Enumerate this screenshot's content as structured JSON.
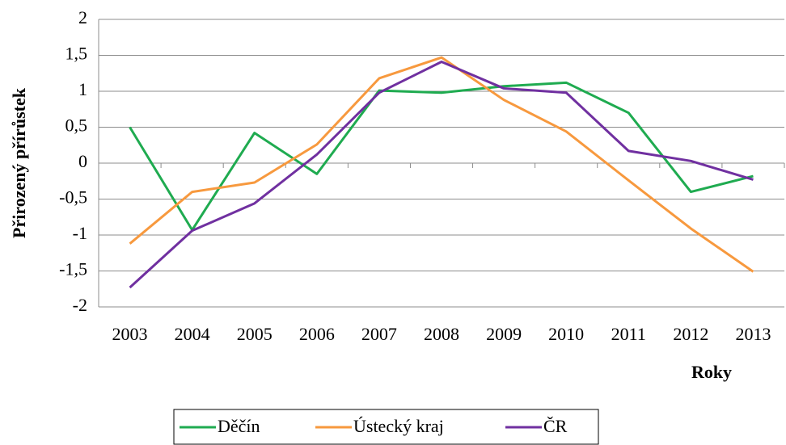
{
  "chart_data": {
    "type": "line",
    "x_label": "Roky",
    "y_label": "Přirozený přírůstek",
    "categories": [
      "2003",
      "2004",
      "2005",
      "2006",
      "2007",
      "2008",
      "2009",
      "2010",
      "2011",
      "2012",
      "2013"
    ],
    "series": [
      {
        "name": "Děčín",
        "color": "#1fab50",
        "values": [
          0.5,
          -0.93,
          0.42,
          -0.15,
          1.01,
          0.98,
          1.07,
          1.12,
          0.7,
          -0.4,
          -0.18
        ]
      },
      {
        "name": "Ústecký kraj",
        "color": "#f7993e",
        "values": [
          -1.12,
          -0.4,
          -0.27,
          0.26,
          1.18,
          1.47,
          0.88,
          0.44,
          -0.24,
          -0.91,
          -1.51
        ]
      },
      {
        "name": "ČR",
        "color": "#7030a0",
        "values": [
          -1.73,
          -0.94,
          -0.56,
          0.12,
          0.98,
          1.41,
          1.04,
          0.98,
          0.17,
          0.03,
          -0.23
        ]
      }
    ],
    "ylim": [
      -2,
      2
    ],
    "yticks": [
      -2,
      {
        "value": -1.5,
        "label": "-1,5"
      },
      -1,
      {
        "value": -0.5,
        "label": "-0,5"
      },
      0,
      {
        "value": 0.5,
        "label": "0,5"
      },
      1,
      {
        "value": 1.5,
        "label": "1,5"
      },
      2
    ],
    "grid": true
  }
}
